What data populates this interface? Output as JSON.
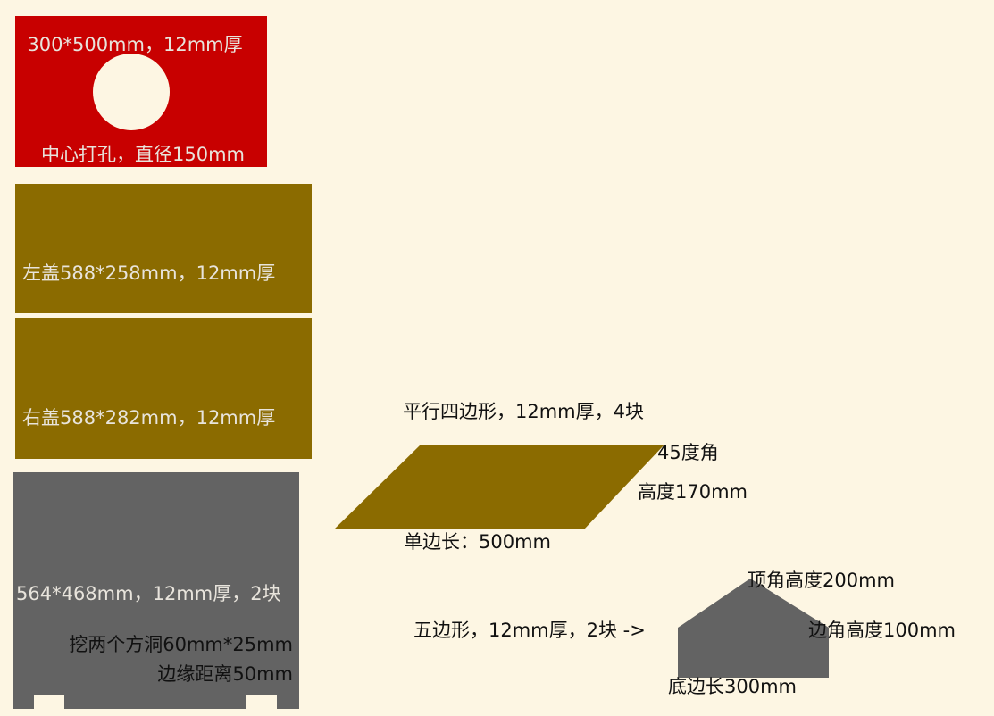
{
  "colors": {
    "background": "#fdf6e3",
    "red_panel": "#c80000",
    "olive_panel": "#8b6b00",
    "gray_panel": "#636363",
    "hole": "#fdf6e3"
  },
  "red_panel": {
    "top_text": "300*500mm，12mm厚",
    "bottom_text": "中心打孔，直径150mm"
  },
  "left_cover": {
    "text": "左盖588*258mm，12mm厚"
  },
  "right_cover": {
    "text": "右盖588*282mm，12mm厚"
  },
  "gray_panel": {
    "size_text": "564*468mm，12mm厚，2块",
    "holes_text": "挖两个方洞60mm*25mm",
    "edge_text": "边缘距离50mm"
  },
  "parallelogram": {
    "title": "平行四边形，12mm厚，4块",
    "angle": "45度角",
    "height": "高度170mm",
    "side": "单边长：500mm"
  },
  "pentagon": {
    "title": "五边形，12mm厚，2块 ->",
    "apex_height": "顶角高度200mm",
    "corner_height": "边角高度100mm",
    "base": "底边长300mm"
  }
}
